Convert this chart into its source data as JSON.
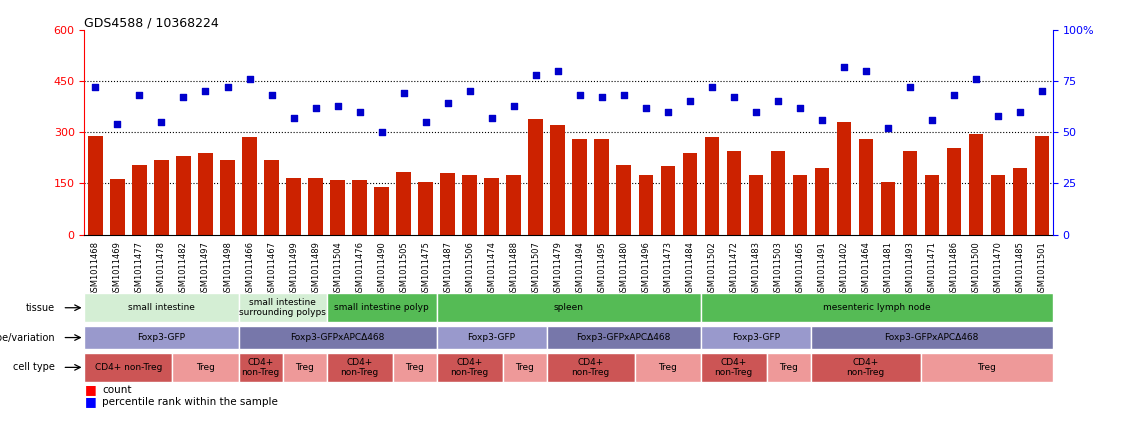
{
  "title": "GDS4588 / 10368224",
  "samples": [
    "GSM1011468",
    "GSM1011469",
    "GSM1011477",
    "GSM1011478",
    "GSM1011482",
    "GSM1011497",
    "GSM1011498",
    "GSM1011466",
    "GSM1011467",
    "GSM1011499",
    "GSM1011489",
    "GSM1011504",
    "GSM1011476",
    "GSM1011490",
    "GSM1011505",
    "GSM1011475",
    "GSM1011487",
    "GSM1011506",
    "GSM1011474",
    "GSM1011488",
    "GSM1011507",
    "GSM1011479",
    "GSM1011494",
    "GSM1011495",
    "GSM1011480",
    "GSM1011496",
    "GSM1011473",
    "GSM1011484",
    "GSM1011502",
    "GSM1011472",
    "GSM1011483",
    "GSM1011503",
    "GSM1011465",
    "GSM1011491",
    "GSM1011402",
    "GSM1011464",
    "GSM1011481",
    "GSM1011493",
    "GSM1011471",
    "GSM1011486",
    "GSM1011500",
    "GSM1011470",
    "GSM1011485",
    "GSM1011501"
  ],
  "bar_values": [
    290,
    162,
    205,
    220,
    230,
    240,
    220,
    285,
    220,
    165,
    165,
    160,
    160,
    140,
    185,
    155,
    180,
    175,
    165,
    175,
    340,
    320,
    280,
    280,
    205,
    175,
    200,
    240,
    285,
    245,
    175,
    245,
    175,
    195,
    330,
    280,
    155,
    245,
    175,
    255,
    295,
    175,
    195,
    290
  ],
  "percentile_values": [
    72,
    54,
    68,
    55,
    67,
    70,
    72,
    76,
    68,
    57,
    62,
    63,
    60,
    50,
    69,
    55,
    64,
    70,
    57,
    63,
    78,
    80,
    68,
    67,
    68,
    62,
    60,
    65,
    72,
    67,
    60,
    65,
    62,
    56,
    82,
    80,
    52,
    72,
    56,
    68,
    76,
    58,
    60,
    70
  ],
  "tissue_groups": [
    {
      "label": "small intestine",
      "start": 0,
      "end": 7,
      "color": "#d4eed4"
    },
    {
      "label": "small intestine\nsurrounding polyps",
      "start": 7,
      "end": 11,
      "color": "#d4eed4"
    },
    {
      "label": "small intestine polyp",
      "start": 11,
      "end": 16,
      "color": "#55bb55"
    },
    {
      "label": "spleen",
      "start": 16,
      "end": 28,
      "color": "#55bb55"
    },
    {
      "label": "mesenteric lymph node",
      "start": 28,
      "end": 44,
      "color": "#55bb55"
    }
  ],
  "genotype_groups": [
    {
      "label": "Foxp3-GFP",
      "start": 0,
      "end": 7,
      "color": "#9999cc"
    },
    {
      "label": "Foxp3-GFPxAPCΔ468",
      "start": 7,
      "end": 16,
      "color": "#7777aa"
    },
    {
      "label": "Foxp3-GFP",
      "start": 16,
      "end": 21,
      "color": "#9999cc"
    },
    {
      "label": "Foxp3-GFPxAPCΔ468",
      "start": 21,
      "end": 28,
      "color": "#7777aa"
    },
    {
      "label": "Foxp3-GFP",
      "start": 28,
      "end": 33,
      "color": "#9999cc"
    },
    {
      "label": "Foxp3-GFPxAPCΔ468",
      "start": 33,
      "end": 44,
      "color": "#7777aa"
    }
  ],
  "celltype_groups": [
    {
      "label": "CD4+ non-Treg",
      "start": 0,
      "end": 4,
      "color": "#cc5555"
    },
    {
      "label": "Treg",
      "start": 4,
      "end": 7,
      "color": "#ee9999"
    },
    {
      "label": "CD4+\nnon-Treg",
      "start": 7,
      "end": 9,
      "color": "#cc5555"
    },
    {
      "label": "Treg",
      "start": 9,
      "end": 11,
      "color": "#ee9999"
    },
    {
      "label": "CD4+\nnon-Treg",
      "start": 11,
      "end": 14,
      "color": "#cc5555"
    },
    {
      "label": "Treg",
      "start": 14,
      "end": 16,
      "color": "#ee9999"
    },
    {
      "label": "CD4+\nnon-Treg",
      "start": 16,
      "end": 19,
      "color": "#cc5555"
    },
    {
      "label": "Treg",
      "start": 19,
      "end": 21,
      "color": "#ee9999"
    },
    {
      "label": "CD4+\nnon-Treg",
      "start": 21,
      "end": 25,
      "color": "#cc5555"
    },
    {
      "label": "Treg",
      "start": 25,
      "end": 28,
      "color": "#ee9999"
    },
    {
      "label": "CD4+\nnon-Treg",
      "start": 28,
      "end": 31,
      "color": "#cc5555"
    },
    {
      "label": "Treg",
      "start": 31,
      "end": 33,
      "color": "#ee9999"
    },
    {
      "label": "CD4+\nnon-Treg",
      "start": 33,
      "end": 38,
      "color": "#cc5555"
    },
    {
      "label": "Treg",
      "start": 38,
      "end": 44,
      "color": "#ee9999"
    }
  ],
  "bar_color": "#cc2200",
  "scatter_color": "#0000cc",
  "ylim_left": [
    0,
    600
  ],
  "ylim_right": [
    0,
    100
  ],
  "yticks_left": [
    0,
    150,
    300,
    450,
    600
  ],
  "yticks_right": [
    0,
    25,
    50,
    75,
    100
  ],
  "hlines": [
    150,
    300,
    450
  ],
  "title_fontsize": 9,
  "tick_fontsize": 6
}
